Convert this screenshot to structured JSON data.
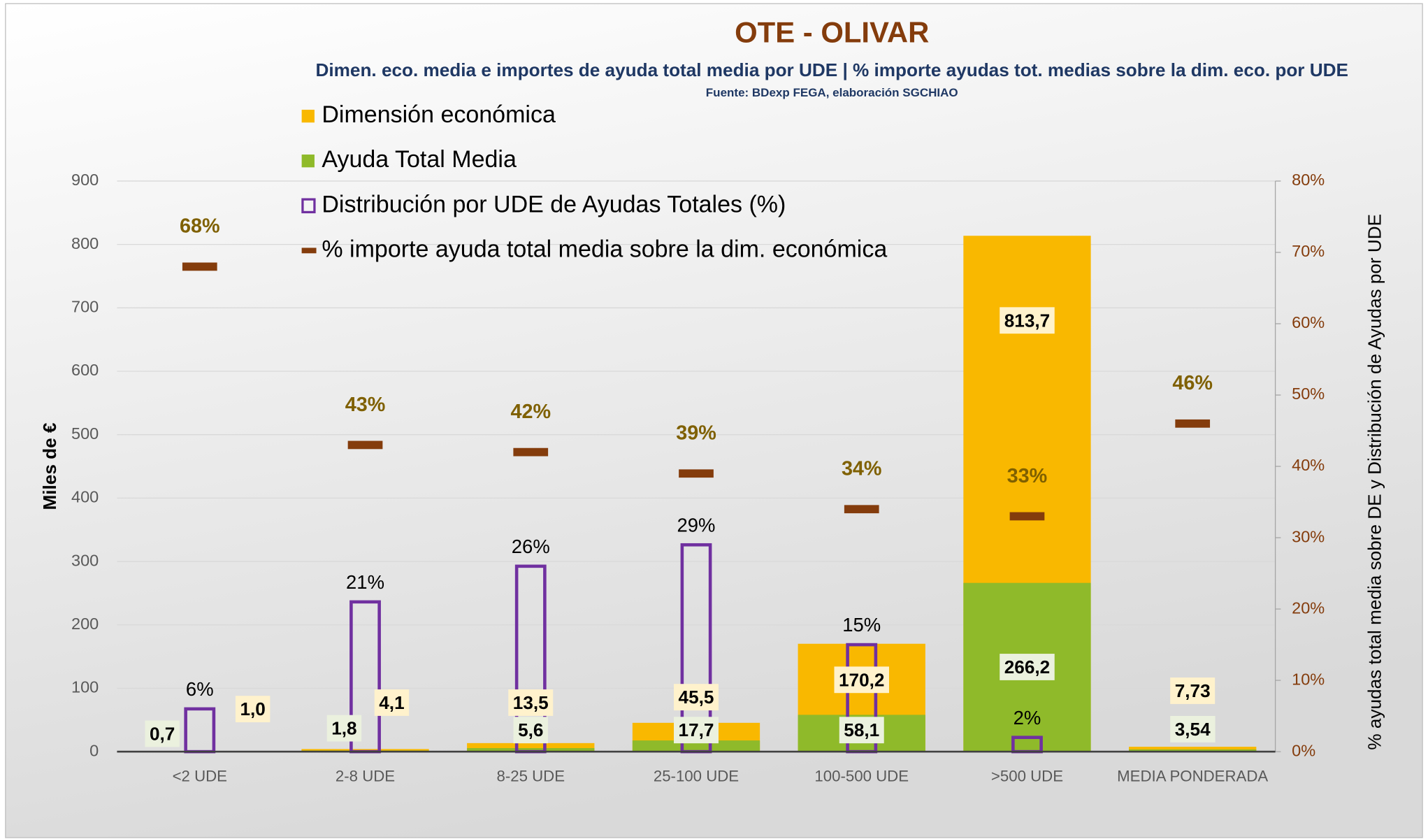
{
  "chart_data": {
    "type": "bar",
    "title": "OTE - OLIVAR",
    "subtitle": "Dimen. eco. media e importes de ayuda total media por UDE | % importe ayudas tot. medias sobre la dim. eco. por UDE",
    "source": "Fuente: BDexp FEGA, elaboración SGCHIAO",
    "y_label": "Miles de €",
    "y2_label": "% ayudas total media sobre DE y  Distribución de Ayudas por UDE",
    "categories": [
      "<2 UDE",
      "2-8 UDE",
      "8-25 UDE",
      "25-100 UDE",
      "100-500 UDE",
      ">500 UDE",
      "MEDIA PONDERADA"
    ],
    "series": [
      {
        "name": "Dimensión económica",
        "type": "bar",
        "color": "#f9b800",
        "values": [
          1.0,
          4.1,
          13.5,
          45.5,
          170.2,
          813.7,
          7.73
        ],
        "value_labels": [
          "1,0",
          "4,1",
          "13,5",
          "45,5",
          "170,2",
          "813,7",
          "7,73"
        ]
      },
      {
        "name": "Ayuda Total Media",
        "type": "bar",
        "color": "#8fba2a",
        "values": [
          0.7,
          1.8,
          5.6,
          17.7,
          58.1,
          266.2,
          3.54
        ],
        "value_labels": [
          "0,7",
          "1,8",
          "5,6",
          "17,7",
          "58,1",
          "266,2",
          "3,54"
        ]
      },
      {
        "name": "Distribución por UDE de Ayudas Totales (%)",
        "type": "bar-outline",
        "color": "#7030a0",
        "axis": "y2",
        "values": [
          6,
          21,
          26,
          29,
          15,
          2,
          null
        ],
        "value_labels": [
          "6%",
          "21%",
          "26%",
          "29%",
          "15%",
          "2%",
          null
        ]
      },
      {
        "name": "% importe ayuda total media sobre la dim. económica",
        "type": "dash",
        "color": "#843c0c",
        "axis": "y2",
        "values": [
          68,
          43,
          42,
          39,
          34,
          33,
          46
        ],
        "value_labels": [
          "68%",
          "43%",
          "42%",
          "39%",
          "34%",
          "33%",
          "46%"
        ]
      }
    ],
    "ylim": [
      0,
      900
    ],
    "yticks": [
      0,
      100,
      200,
      300,
      400,
      500,
      600,
      700,
      800,
      900
    ],
    "y2lim": [
      0,
      80
    ],
    "y2ticks": [
      {
        "value": 0,
        "label": "0%"
      },
      {
        "value": 10,
        "label": "10%"
      },
      {
        "value": 20,
        "label": "20%"
      },
      {
        "value": 30,
        "label": "30%"
      },
      {
        "value": 40,
        "label": "40%"
      },
      {
        "value": 50,
        "label": "50%"
      },
      {
        "value": 60,
        "label": "60%"
      },
      {
        "value": 70,
        "label": "70%"
      },
      {
        "value": 80,
        "label": "80%"
      }
    ],
    "grid": true,
    "legend": "top-left"
  }
}
